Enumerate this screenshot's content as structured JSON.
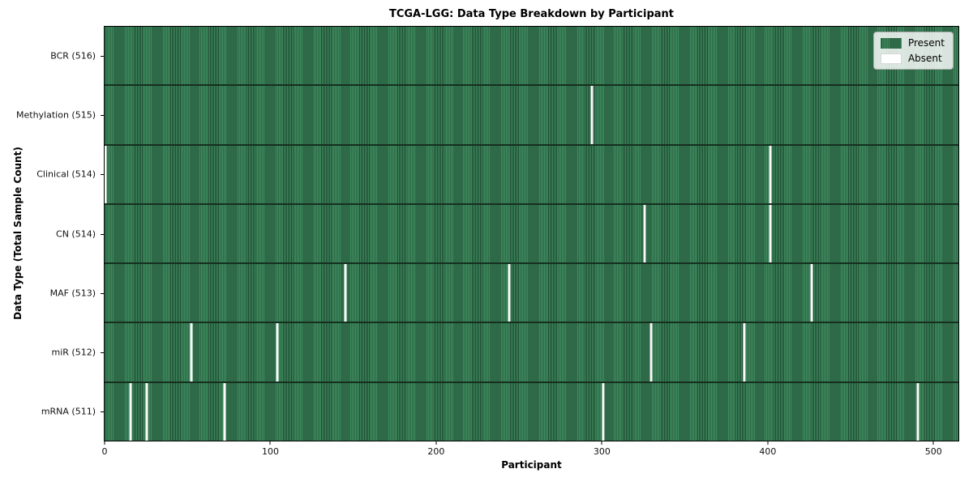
{
  "figure": {
    "title": "TCGA-LGG: Data Type Breakdown by Participant",
    "xlabel": "Participant",
    "ylabel": "Data Type (Total Sample Count)"
  },
  "chart_data": {
    "type": "heatmap",
    "title": "TCGA-LGG: Data Type Breakdown by Participant",
    "xlabel": "Participant",
    "ylabel": "Data Type (Total Sample Count)",
    "x_ticks": [
      0,
      100,
      200,
      300,
      400,
      500
    ],
    "x_range": [
      0,
      516
    ],
    "n_participants": 516,
    "grid": false,
    "legend_position": "upper right",
    "legend_items": [
      {
        "label": "Present",
        "color": "#2f8355",
        "stripe_light": "#3e8b5e",
        "stripe_dark": "#1e4931"
      },
      {
        "label": "Absent",
        "color": "#ffffff"
      }
    ],
    "colors": {
      "present_fill": "#2f8355",
      "present_stripe_light": "#3e8b5e",
      "present_stripe_dark": "#1e4931",
      "absent_fill": "#fafafa",
      "row_divider": "#15301f",
      "axis": "#000000"
    },
    "rows": [
      {
        "label": "BCR (516)",
        "total": 516,
        "absent_participants": []
      },
      {
        "label": "Methylation (515)",
        "total": 515,
        "absent_participants": [
          294
        ]
      },
      {
        "label": "Clinical (514)",
        "total": 514,
        "absent_participants": [
          0,
          402
        ]
      },
      {
        "label": "CN (514)",
        "total": 514,
        "absent_participants": [
          326,
          402
        ]
      },
      {
        "label": "MAF (513)",
        "total": 513,
        "absent_participants": [
          145,
          244,
          427
        ]
      },
      {
        "label": "miR (512)",
        "total": 512,
        "absent_participants": [
          52,
          104,
          330,
          386
        ]
      },
      {
        "label": "mRNA (511)",
        "total": 511,
        "absent_participants": [
          15,
          25,
          72,
          301,
          491
        ]
      }
    ]
  }
}
